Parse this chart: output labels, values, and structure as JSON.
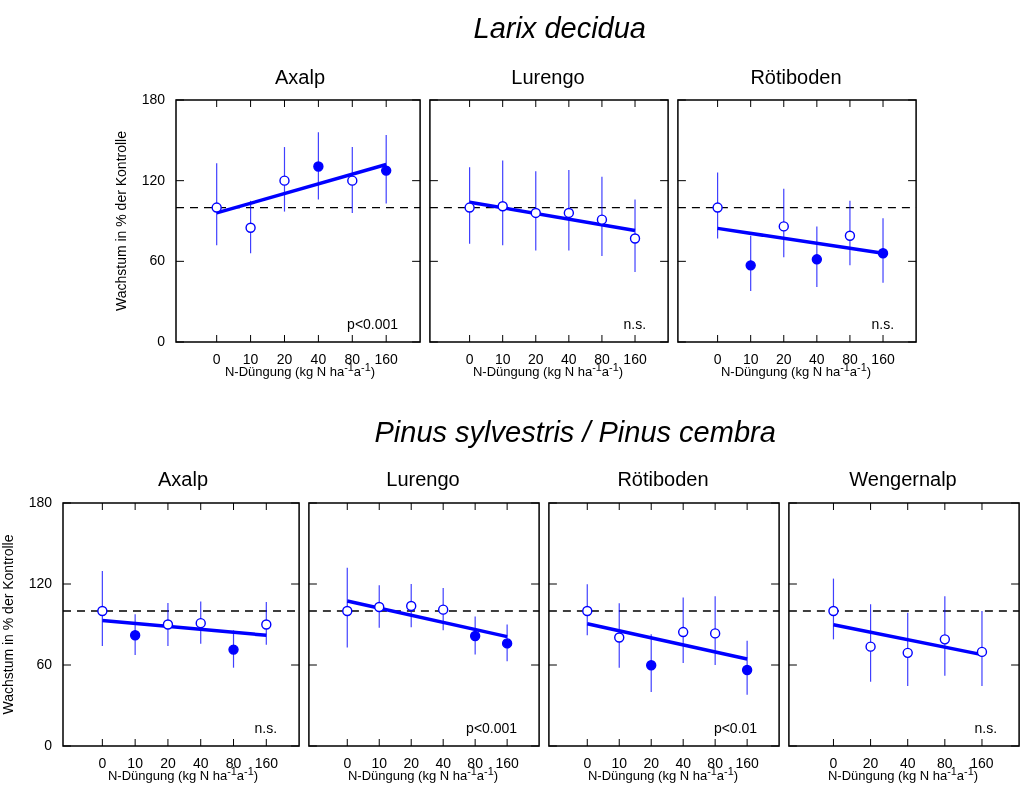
{
  "chart_data": [
    {
      "type": "scatter",
      "subtitle": "Axalp",
      "xlabel": "N-Düngung (kg N ha$^{-1}$a$^{-1}$)",
      "ylabel": "Wachstum in % der Kontrolle",
      "categories": [
        "0",
        "10",
        "20",
        "40",
        "80",
        "160"
      ],
      "ylim": [
        0,
        180
      ],
      "yticks": [
        0,
        60,
        120,
        180
      ],
      "grid": false,
      "legend": false,
      "ref_lines": [
        {
          "axis": "y",
          "value": 100,
          "color": "#000000",
          "line_style": "dashed"
        }
      ],
      "annotations": [
        "p<0.001"
      ],
      "series": [
        {
          "marker": "circle",
          "color": "#0000ff",
          "x": [
            "0",
            "10",
            "20",
            "80"
          ],
          "values": [
            100,
            85,
            120,
            120
          ],
          "errors": [
            [
              72,
              133
            ],
            [
              66,
              105
            ],
            [
              97,
              145
            ],
            [
              96,
              145
            ]
          ]
        },
        {
          "marker": "circle",
          "color": "#0000ff",
          "x": [
            "40",
            "160"
          ],
          "values": [
            130.5,
            127.5
          ],
          "errors": [
            [
              106,
              156
            ],
            [
              103,
              154
            ]
          ]
        },
        {
          "type": "line",
          "marker": "none",
          "color": "#0000ff",
          "x": [
            "0",
            "160"
          ],
          "values": [
            96,
            132
          ]
        }
      ]
    },
    {
      "type": "scatter",
      "title": "Larix decidua",
      "subtitle": "Lurengo",
      "xlabel": "N-Düngung (kg N ha$^{-1}$a$^{-1}$)",
      "categories": [
        "0",
        "10",
        "20",
        "40",
        "80",
        "160"
      ],
      "ylim": [
        0,
        180
      ],
      "yticks": [
        0,
        60,
        120,
        180
      ],
      "tick_labels": "x",
      "grid": false,
      "legend": false,
      "ref_lines": [
        {
          "axis": "y",
          "value": 100,
          "color": "#000000",
          "line_style": "dashed"
        }
      ],
      "annotations": [
        "n.s."
      ],
      "series": [
        {
          "marker": "circle",
          "color": "#0000ff",
          "x": [
            "0",
            "10",
            "20",
            "40",
            "80",
            "160"
          ],
          "values": [
            100,
            101,
            96,
            96,
            91,
            77
          ],
          "errors": [
            [
              73,
              130
            ],
            [
              72,
              135
            ],
            [
              68,
              127
            ],
            [
              68,
              128
            ],
            [
              64,
              123
            ],
            [
              52,
              106
            ]
          ]
        },
        {
          "type": "line",
          "marker": "none",
          "color": "#0000ff",
          "x": [
            "0",
            "160"
          ],
          "values": [
            104,
            83
          ]
        }
      ]
    },
    {
      "type": "scatter",
      "subtitle": "Rötiboden",
      "xlabel": "N-Düngung (kg N ha$^{-1}$a$^{-1}$)",
      "categories": [
        "0",
        "10",
        "20",
        "40",
        "80",
        "160"
      ],
      "ylim": [
        0,
        180
      ],
      "yticks": [
        0,
        60,
        120,
        180
      ],
      "tick_labels": "x",
      "grid": false,
      "legend": false,
      "ref_lines": [
        {
          "axis": "y",
          "value": 100,
          "color": "#000000",
          "line_style": "dashed"
        }
      ],
      "annotations": [
        "n.s."
      ],
      "series": [
        {
          "marker": "circle",
          "color": "#0000ff",
          "x": [
            "0",
            "20",
            "80"
          ],
          "values": [
            100,
            86,
            79
          ],
          "errors": [
            [
              77,
              126
            ],
            [
              63,
              114
            ],
            [
              57,
              105
            ]
          ]
        },
        {
          "marker": "circle",
          "color": "#0000ff",
          "x": [
            "10",
            "40",
            "160"
          ],
          "values": [
            57,
            61.5,
            66
          ],
          "errors": [
            [
              38,
              79
            ],
            [
              41,
              86
            ],
            [
              44,
              92
            ]
          ]
        },
        {
          "type": "line",
          "marker": "none",
          "color": "#0000ff",
          "x": [
            "0",
            "160"
          ],
          "values": [
            84.5,
            66
          ]
        }
      ]
    },
    {
      "type": "scatter",
      "subtitle": "Axalp",
      "xlabel": "N-Düngung (kg N ha$^{-1}$a$^{-1}$)",
      "ylabel": "Wachstum in % der Kontrolle",
      "categories": [
        "0",
        "10",
        "20",
        "40",
        "80",
        "160"
      ],
      "ylim": [
        0,
        180
      ],
      "yticks": [
        0,
        60,
        120,
        180
      ],
      "grid": false,
      "legend": false,
      "ref_lines": [
        {
          "axis": "y",
          "value": 100,
          "color": "#000000",
          "line_style": "dashed"
        }
      ],
      "annotations": [
        "n.s."
      ],
      "series": [
        {
          "marker": "circle",
          "color": "#0000ff",
          "x": [
            "0",
            "20",
            "40",
            "160"
          ],
          "values": [
            100,
            90,
            91,
            90
          ],
          "errors": [
            [
              74,
              129.6
            ],
            [
              74,
              106
            ],
            [
              75.7,
              107
            ],
            [
              75,
              106.6
            ]
          ]
        },
        {
          "marker": "circle",
          "color": "#0000ff",
          "x": [
            "10",
            "80"
          ],
          "values": [
            82,
            71.4
          ],
          "errors": [
            [
              67.5,
              97.6
            ],
            [
              58,
              85.7
            ]
          ]
        },
        {
          "type": "line",
          "marker": "none",
          "color": "#0000ff",
          "x": [
            "0",
            "160"
          ],
          "values": [
            93,
            82
          ]
        }
      ]
    },
    {
      "type": "scatter",
      "subtitle": "Lurengo",
      "xlabel": "N-Düngung (kg N ha$^{-1}$a$^{-1}$)",
      "categories": [
        "0",
        "10",
        "20",
        "40",
        "80",
        "160"
      ],
      "ylim": [
        0,
        180
      ],
      "yticks": [
        0,
        60,
        120,
        180
      ],
      "tick_labels": "x",
      "grid": false,
      "legend": false,
      "ref_lines": [
        {
          "axis": "y",
          "value": 100,
          "color": "#000000",
          "line_style": "dashed"
        }
      ],
      "annotations": [
        "p<0.001"
      ],
      "series": [
        {
          "marker": "circle",
          "color": "#0000ff",
          "x": [
            "0",
            "10",
            "20",
            "40"
          ],
          "values": [
            100,
            103,
            103.7,
            101
          ],
          "errors": [
            [
              73,
              132
            ],
            [
              87.6,
              119
            ],
            [
              88,
              120
            ],
            [
              85.7,
              117
            ]
          ]
        },
        {
          "marker": "circle",
          "color": "#0000ff",
          "x": [
            "80",
            "160"
          ],
          "values": [
            81.5,
            76
          ],
          "errors": [
            [
              67.7,
              96
            ],
            [
              62.7,
              90
            ]
          ]
        },
        {
          "type": "line",
          "marker": "none",
          "color": "#0000ff",
          "x": [
            "0",
            "160"
          ],
          "values": [
            107.4,
            81
          ]
        }
      ]
    },
    {
      "type": "scatter",
      "title": "Pinus sylvestris / Pinus cembra",
      "subtitle": "Rötiboden",
      "xlabel": "N-Düngung (kg N ha$^{-1}$a$^{-1}$)",
      "categories": [
        "0",
        "10",
        "20",
        "40",
        "80",
        "160"
      ],
      "ylim": [
        0,
        180
      ],
      "yticks": [
        0,
        60,
        120,
        180
      ],
      "tick_labels": "x",
      "grid": false,
      "legend": false,
      "ref_lines": [
        {
          "axis": "y",
          "value": 100,
          "color": "#000000",
          "line_style": "dashed"
        }
      ],
      "annotations": [
        "p<0.01"
      ],
      "series": [
        {
          "marker": "circle",
          "color": "#0000ff",
          "x": [
            "0",
            "10",
            "40",
            "80"
          ],
          "values": [
            100,
            80.4,
            84.4,
            83.4
          ],
          "errors": [
            [
              82,
              119.8
            ],
            [
              58,
              105.7
            ],
            [
              61.5,
              110
            ],
            [
              60,
              111
            ]
          ]
        },
        {
          "marker": "circle",
          "color": "#0000ff",
          "x": [
            "20",
            "160"
          ],
          "values": [
            59.8,
            56.3
          ],
          "errors": [
            [
              40,
              82.8
            ],
            [
              38,
              78
            ]
          ]
        },
        {
          "type": "line",
          "marker": "none",
          "color": "#0000ff",
          "x": [
            "0",
            "160"
          ],
          "values": [
            90.5,
            64.5
          ]
        }
      ]
    },
    {
      "type": "scatter",
      "subtitle": "Wengernalp",
      "xlabel": "N-Düngung (kg N ha$^{-1}$a$^{-1}$)",
      "categories": [
        "0",
        "20",
        "40",
        "80",
        "160"
      ],
      "ylim": [
        0,
        180
      ],
      "yticks": [
        0,
        60,
        120,
        180
      ],
      "tick_labels": "x",
      "grid": false,
      "legend": false,
      "ref_lines": [
        {
          "axis": "y",
          "value": 100,
          "color": "#000000",
          "line_style": "dashed"
        }
      ],
      "annotations": [
        "n.s."
      ],
      "series": [
        {
          "marker": "circle",
          "color": "#0000ff",
          "x": [
            "0",
            "20",
            "40",
            "80",
            "160"
          ],
          "values": [
            100,
            73.6,
            69,
            79,
            69.7
          ],
          "errors": [
            [
              79,
              124
            ],
            [
              47.6,
              105
            ],
            [
              44.4,
              98.7
            ],
            [
              52,
              111
            ],
            [
              44.4,
              100
            ]
          ]
        },
        {
          "type": "line",
          "marker": "none",
          "color": "#0000ff",
          "x": [
            "0",
            "160"
          ],
          "values": [
            89.8,
            67.7
          ]
        }
      ]
    }
  ]
}
